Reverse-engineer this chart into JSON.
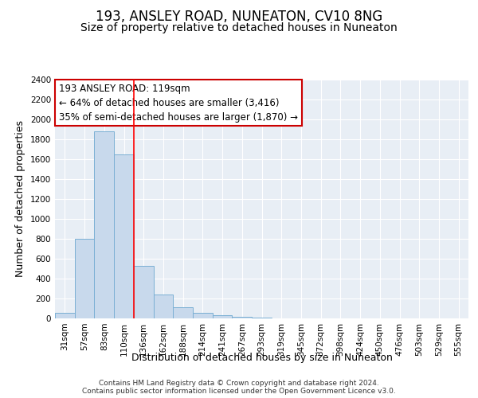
{
  "title": "193, ANSLEY ROAD, NUNEATON, CV10 8NG",
  "subtitle": "Size of property relative to detached houses in Nuneaton",
  "xlabel": "Distribution of detached houses by size in Nuneaton",
  "ylabel": "Number of detached properties",
  "bar_categories": [
    "31sqm",
    "57sqm",
    "83sqm",
    "110sqm",
    "136sqm",
    "162sqm",
    "188sqm",
    "214sqm",
    "241sqm",
    "267sqm",
    "293sqm",
    "319sqm",
    "345sqm",
    "372sqm",
    "398sqm",
    "424sqm",
    "450sqm",
    "476sqm",
    "503sqm",
    "529sqm",
    "555sqm"
  ],
  "bar_values": [
    60,
    800,
    1880,
    1650,
    530,
    240,
    110,
    60,
    35,
    20,
    10,
    0,
    0,
    0,
    0,
    0,
    0,
    0,
    0,
    0,
    0
  ],
  "bar_color": "#c8d9ec",
  "bar_edge_color": "#7aafd4",
  "ylim": [
    0,
    2400
  ],
  "yticks": [
    0,
    200,
    400,
    600,
    800,
    1000,
    1200,
    1400,
    1600,
    1800,
    2000,
    2200,
    2400
  ],
  "red_line_after_index": 3,
  "annotation_title": "193 ANSLEY ROAD: 119sqm",
  "annotation_line1": "← 64% of detached houses are smaller (3,416)",
  "annotation_line2": "35% of semi-detached houses are larger (1,870) →",
  "annotation_box_color": "#ffffff",
  "annotation_box_edge_color": "#cc0000",
  "footer_line1": "Contains HM Land Registry data © Crown copyright and database right 2024.",
  "footer_line2": "Contains public sector information licensed under the Open Government Licence v3.0.",
  "bg_color": "#ffffff",
  "plot_bg_color": "#e8eef5",
  "grid_color": "#ffffff",
  "title_fontsize": 12,
  "subtitle_fontsize": 10,
  "axis_label_fontsize": 9,
  "tick_fontsize": 7.5,
  "footer_fontsize": 6.5,
  "annotation_fontsize": 8.5
}
